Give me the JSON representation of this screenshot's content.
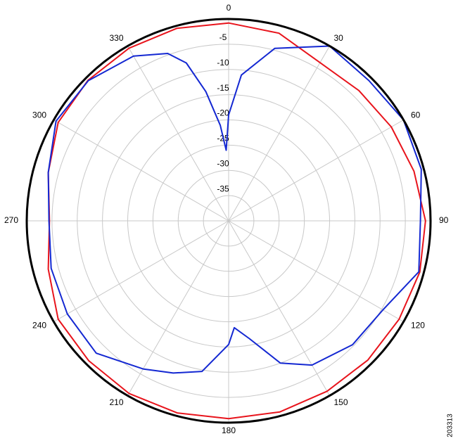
{
  "chart_data": {
    "type": "polar",
    "rlim": [
      -40,
      0
    ],
    "rticks": [
      -5,
      -10,
      -15,
      -20,
      -25,
      -30,
      -35
    ],
    "angle_ticks": [
      0,
      30,
      60,
      90,
      120,
      150,
      180,
      210,
      240,
      270,
      300,
      330
    ],
    "grid": true,
    "series": [
      {
        "color": "#e8141c",
        "x": [
          0,
          15,
          30,
          45,
          60,
          75,
          90,
          105,
          120,
          135,
          150,
          165,
          180,
          195,
          210,
          225,
          240,
          255,
          270,
          285,
          300,
          315,
          330,
          345
        ],
        "values": [
          -0.8,
          -1.5,
          -3.8,
          -3.5,
          -2.8,
          -2,
          -1,
          -0.8,
          -1,
          -1,
          -1,
          -0.8,
          -0.8,
          -0.6,
          -0.5,
          -0.8,
          -1,
          -3,
          -4.5,
          -3,
          -1,
          -0.6,
          -0.5,
          -0.5
        ]
      },
      {
        "color": "#1428d2",
        "x": [
          0,
          5,
          15,
          30,
          45,
          60,
          75,
          90,
          105,
          120,
          135,
          150,
          160,
          170,
          177,
          180,
          190,
          200,
          210,
          225,
          240,
          255,
          270,
          285,
          300,
          315,
          330,
          340,
          345,
          350,
          355,
          358
        ],
        "values": [
          -19,
          -11,
          -4.6,
          0,
          -0.7,
          0,
          -0.5,
          -2,
          -1,
          -4.7,
          -5.3,
          -7,
          -10,
          -16.3,
          -18.8,
          -15.5,
          -9.7,
          -7.9,
          -6.1,
          -2.9,
          -3.1,
          -3.6,
          -4.4,
          -3,
          -0.5,
          -0.7,
          -2.3,
          -4.7,
          -7.6,
          -14,
          -21,
          -26
        ]
      }
    ]
  },
  "figure_id": "203313"
}
